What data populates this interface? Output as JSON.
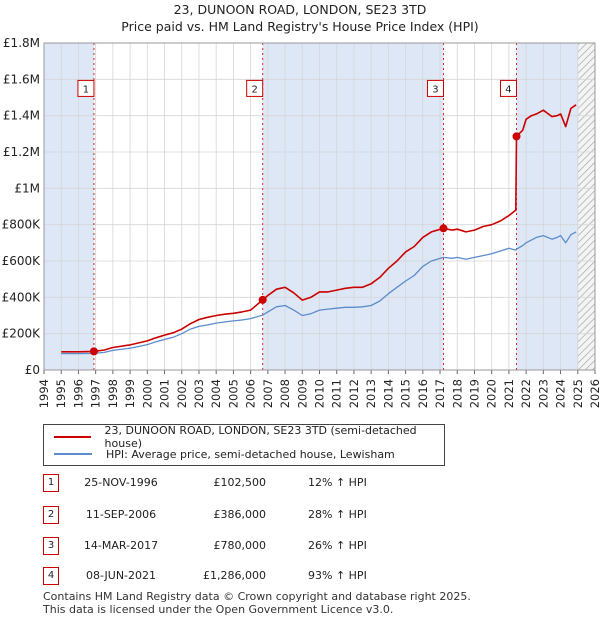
{
  "title": "23, DUNOON ROAD, LONDON, SE23 3TD",
  "subtitle": "Price paid vs. HM Land Registry's House Price Index (HPI)",
  "chart_data": {
    "type": "line",
    "title": "23, DUNOON ROAD, LONDON, SE23 3TD",
    "subtitle": "Price paid vs. HM Land Registry's House Price Index (HPI)",
    "xlabel": "",
    "ylabel": "",
    "xlim": [
      1994,
      2026
    ],
    "ylim": [
      0,
      1800000
    ],
    "x_ticks": [
      "1994",
      "1995",
      "1996",
      "1997",
      "1998",
      "1999",
      "2000",
      "2001",
      "2002",
      "2003",
      "2004",
      "2005",
      "2006",
      "2007",
      "2008",
      "2009",
      "2010",
      "2011",
      "2012",
      "2013",
      "2014",
      "2015",
      "2016",
      "2017",
      "2018",
      "2019",
      "2020",
      "2021",
      "2022",
      "2023",
      "2024",
      "2025",
      "2026"
    ],
    "y_ticks": [
      {
        "value": 0,
        "label": "£0"
      },
      {
        "value": 200000,
        "label": "£200K"
      },
      {
        "value": 400000,
        "label": "£400K"
      },
      {
        "value": 600000,
        "label": "£600K"
      },
      {
        "value": 800000,
        "label": "£800K"
      },
      {
        "value": 1000000,
        "label": "£1M"
      },
      {
        "value": 1200000,
        "label": "£1.2M"
      },
      {
        "value": 1400000,
        "label": "£1.4M"
      },
      {
        "value": 1600000,
        "label": "£1.6M"
      },
      {
        "value": 1800000,
        "label": "£1.8M"
      }
    ],
    "grid": true,
    "colors": {
      "property": "#cc0000",
      "hpi": "#5b8ccc",
      "shade": "#dde7f6",
      "marker_line": "#cc0000"
    },
    "series": [
      {
        "name": "23, DUNOON ROAD, LONDON, SE23 3TD (semi-detached house)",
        "key": "property",
        "x": [
          1995.0,
          1996.0,
          1996.9,
          1997.5,
          1998.0,
          1999.0,
          2000.0,
          2000.5,
          2001.0,
          2001.5,
          2002.0,
          2002.5,
          2003.0,
          2003.5,
          2004.0,
          2004.5,
          2005.0,
          2005.5,
          2006.0,
          2006.7,
          2007.0,
          2007.5,
          2008.0,
          2008.5,
          2009.0,
          2009.5,
          2010.0,
          2010.5,
          2011.0,
          2011.5,
          2012.0,
          2012.5,
          2013.0,
          2013.5,
          2014.0,
          2014.5,
          2015.0,
          2015.5,
          2016.0,
          2016.5,
          2017.2,
          2017.7,
          2018.0,
          2018.5,
          2019.0,
          2019.5,
          2020.0,
          2020.5,
          2021.0,
          2021.4,
          2021.44,
          2021.8,
          2022.0,
          2022.3,
          2022.6,
          2023.0,
          2023.5,
          2023.8,
          2024.0,
          2024.3,
          2024.6,
          2024.9
        ],
        "y": [
          100000,
          100000,
          102500,
          110000,
          124000,
          138000,
          160000,
          177000,
          192000,
          205000,
          225000,
          255000,
          278000,
          290000,
          300000,
          307000,
          312000,
          320000,
          330000,
          386000,
          410000,
          445000,
          455000,
          425000,
          385000,
          400000,
          430000,
          430000,
          440000,
          450000,
          455000,
          455000,
          475000,
          510000,
          560000,
          600000,
          650000,
          680000,
          730000,
          760000,
          780000,
          770000,
          775000,
          760000,
          770000,
          790000,
          800000,
          820000,
          850000,
          880000,
          1286000,
          1320000,
          1380000,
          1400000,
          1410000,
          1430000,
          1395000,
          1400000,
          1410000,
          1340000,
          1440000,
          1460000
        ]
      },
      {
        "name": "HPI: Average price, semi-detached house, Lewisham",
        "key": "hpi",
        "x": [
          1995.0,
          1996.0,
          1996.9,
          1997.5,
          1998.0,
          1999.0,
          2000.0,
          2000.5,
          2001.0,
          2001.5,
          2002.0,
          2002.5,
          2003.0,
          2003.5,
          2004.0,
          2004.5,
          2005.0,
          2005.5,
          2006.0,
          2006.7,
          2007.0,
          2007.5,
          2008.0,
          2008.5,
          2009.0,
          2009.5,
          2010.0,
          2010.5,
          2011.0,
          2011.5,
          2012.0,
          2012.5,
          2013.0,
          2013.5,
          2014.0,
          2014.5,
          2015.0,
          2015.5,
          2016.0,
          2016.5,
          2017.2,
          2017.7,
          2018.0,
          2018.5,
          2019.0,
          2019.5,
          2020.0,
          2020.5,
          2021.0,
          2021.4,
          2021.44,
          2021.8,
          2022.0,
          2022.3,
          2022.6,
          2023.0,
          2023.5,
          2023.8,
          2024.0,
          2024.3,
          2024.6,
          2024.9
        ],
        "y": [
          90000,
          90000,
          91500,
          97000,
          108000,
          120000,
          140000,
          155000,
          168000,
          180000,
          200000,
          225000,
          240000,
          248000,
          258000,
          265000,
          270000,
          275000,
          283000,
          302000,
          320000,
          348000,
          355000,
          330000,
          300000,
          310000,
          330000,
          335000,
          340000,
          345000,
          345000,
          348000,
          355000,
          380000,
          420000,
          455000,
          490000,
          520000,
          570000,
          600000,
          620000,
          615000,
          620000,
          610000,
          620000,
          630000,
          640000,
          655000,
          670000,
          660000,
          665000,
          685000,
          700000,
          715000,
          730000,
          740000,
          720000,
          730000,
          740000,
          700000,
          745000,
          760000
        ]
      }
    ],
    "sales": [
      {
        "id": "1",
        "x": 1996.9,
        "value": 102500
      },
      {
        "id": "2",
        "x": 2006.7,
        "value": 386000
      },
      {
        "id": "3",
        "x": 2017.2,
        "value": 780000
      },
      {
        "id": "4",
        "x": 2021.44,
        "value": 1286000
      }
    ],
    "shaded_ranges": [
      [
        1994.0,
        1996.9
      ],
      [
        2006.7,
        2017.2
      ],
      [
        2021.44,
        2025.0
      ]
    ],
    "hatched_ranges": [
      [
        2025.0,
        2026.0
      ]
    ]
  },
  "legend": {
    "property_label": "23, DUNOON ROAD, LONDON, SE23 3TD (semi-detached house)",
    "hpi_label": "HPI: Average price, semi-detached house, Lewisham"
  },
  "transactions": [
    {
      "num": "1",
      "date": "25-NOV-1996",
      "price": "£102,500",
      "hpi": "12% ↑ HPI"
    },
    {
      "num": "2",
      "date": "11-SEP-2006",
      "price": "£386,000",
      "hpi": "28% ↑ HPI"
    },
    {
      "num": "3",
      "date": "14-MAR-2017",
      "price": "£780,000",
      "hpi": "26% ↑ HPI"
    },
    {
      "num": "4",
      "date": "08-JUN-2021",
      "price": "£1,286,000",
      "hpi": "93% ↑ HPI"
    }
  ],
  "footer": {
    "line1": "Contains HM Land Registry data © Crown copyright and database right 2025.",
    "line2": "This data is licensed under the Open Government Licence v3.0."
  }
}
